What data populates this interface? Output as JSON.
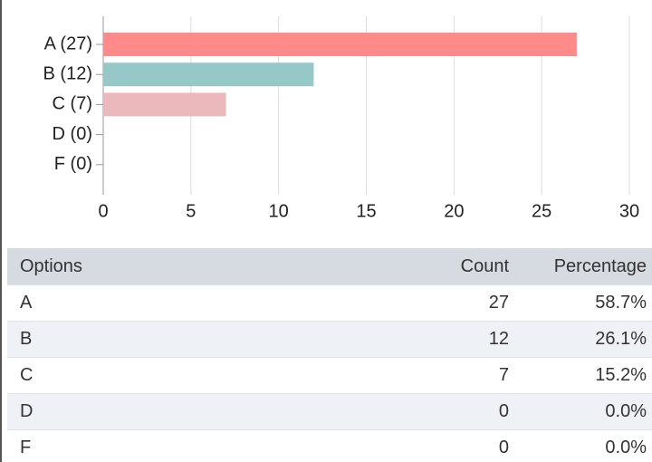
{
  "chart_data": {
    "type": "barh",
    "categories": [
      "A (27)",
      "B (12)",
      "C (7)",
      "D (0)",
      "F (0)"
    ],
    "values": [
      27,
      12,
      7,
      0,
      0
    ],
    "colors": [
      "#ff8a8a",
      "#96c8c8",
      "#ebb8bc",
      "#ff8a8a",
      "#96c8c8"
    ],
    "xlim": [
      0,
      30
    ],
    "xticks": [
      0,
      5,
      10,
      15,
      20,
      25,
      30
    ],
    "grid": true
  },
  "table": {
    "header": [
      "Options",
      "Count",
      "Percentage"
    ],
    "rows": [
      [
        "A",
        27,
        "58.7%"
      ],
      [
        "B",
        12,
        "26.1%"
      ],
      [
        "C",
        7,
        "15.2%"
      ],
      [
        "D",
        0,
        "0.0%"
      ],
      [
        "F",
        0,
        "0.0%"
      ]
    ]
  }
}
